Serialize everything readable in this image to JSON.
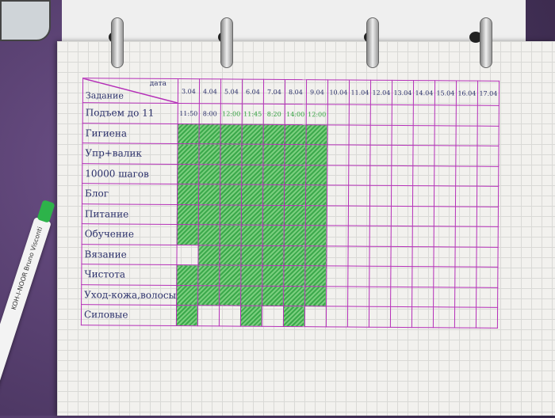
{
  "tracker": {
    "corner_task": "Задание",
    "corner_date": "дата",
    "dates": [
      "3.04",
      "4.04",
      "5.04",
      "6.04",
      "7.04",
      "8.04",
      "9.04",
      "10.04",
      "11.04",
      "12.04",
      "13.04",
      "14.04",
      "15.04",
      "16.04",
      "17.04"
    ],
    "wake_row": {
      "label": "Подъем до 11",
      "times": [
        "11:50",
        "8:00",
        "12:00",
        "11:45",
        "8:20",
        "14:00",
        "12:00"
      ],
      "time_colors": [
        "#2a2f6a",
        "#2a2f6a",
        "#2fa03c",
        "#2fa03c",
        "#2fa03c",
        "#2fa03c",
        "#2fa03c"
      ]
    },
    "habits": [
      {
        "label": "Гигиена",
        "done": [
          1,
          1,
          1,
          1,
          1,
          1,
          1
        ]
      },
      {
        "label": "Упр+валик",
        "done": [
          1,
          1,
          1,
          1,
          1,
          1,
          1
        ]
      },
      {
        "label": "10000 шагов",
        "done": [
          1,
          1,
          1,
          1,
          1,
          1,
          1
        ]
      },
      {
        "label": "Блог",
        "done": [
          1,
          1,
          1,
          1,
          1,
          1,
          1
        ]
      },
      {
        "label": "Питание",
        "done": [
          1,
          1,
          1,
          1,
          1,
          1,
          1
        ]
      },
      {
        "label": "Обучение",
        "done": [
          1,
          1,
          1,
          1,
          1,
          1,
          1
        ]
      },
      {
        "label": "Вязание",
        "done": [
          0,
          1,
          1,
          1,
          1,
          1,
          1
        ]
      },
      {
        "label": "Чистота",
        "done": [
          1,
          1,
          1,
          1,
          1,
          1,
          1
        ]
      },
      {
        "label": "Уход-кожа,волосы",
        "done": [
          1,
          1,
          1,
          1,
          1,
          1,
          1
        ]
      },
      {
        "label": "Силовые",
        "done": [
          1,
          0,
          0,
          1,
          0,
          1,
          0
        ]
      }
    ],
    "fill_color": "#3aa84a",
    "grid_color": "#b52fb8",
    "ink_color": "#2a2f6a"
  },
  "pen": {
    "brand": "KOH-I-NOOR Bruno Visconti"
  }
}
